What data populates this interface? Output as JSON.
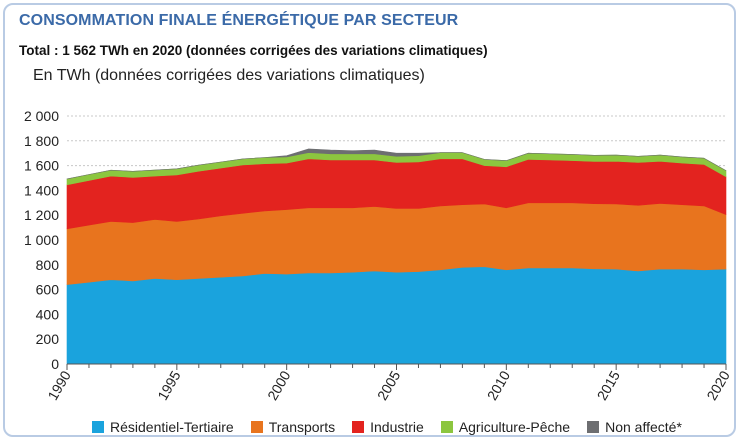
{
  "header": {
    "title": "CONSOMMATION FINALE ÉNERGÉTIQUE PAR SECTEUR",
    "subtitle": "Total : 1 562 TWh en 2020 (données corrigées des variations climatiques)",
    "unit_label": "En TWh (données corrigées des variations climatiques)"
  },
  "colors": {
    "title": "#3b6aa8",
    "grid": "#c8c8c8"
  },
  "chart_data": {
    "type": "area",
    "stacked": true,
    "ylabel": "En TWh (données corrigées des variations climatiques)",
    "ylim": [
      0,
      2000
    ],
    "xlim": [
      1990,
      2020
    ],
    "yticks": [
      0,
      200,
      400,
      600,
      800,
      1000,
      1200,
      1400,
      1600,
      1800,
      2000
    ],
    "ytick_labels": [
      "0",
      "200",
      "400",
      "600",
      "800",
      "1 000",
      "1 200",
      "1 400",
      "1 600",
      "1 800",
      "2 000"
    ],
    "xticks": [
      1990,
      1995,
      2000,
      2005,
      2010,
      2015,
      2020
    ],
    "xtick_labels": [
      "1990",
      "1995",
      "2000",
      "2005",
      "2010",
      "2015",
      "2020"
    ],
    "grid": true,
    "legend_position": "bottom",
    "x": [
      1990,
      1991,
      1992,
      1993,
      1994,
      1995,
      1996,
      1997,
      1998,
      1999,
      2000,
      2001,
      2002,
      2003,
      2004,
      2005,
      2006,
      2007,
      2008,
      2009,
      2010,
      2011,
      2012,
      2013,
      2014,
      2015,
      2016,
      2017,
      2018,
      2019,
      2020
    ],
    "series": [
      {
        "name": "Résidentiel-Tertiaire",
        "color": "#1aa3dd",
        "values": [
          640,
          660,
          680,
          670,
          690,
          680,
          690,
          700,
          710,
          730,
          725,
          735,
          735,
          740,
          750,
          740,
          745,
          760,
          780,
          785,
          760,
          775,
          775,
          775,
          768,
          765,
          750,
          765,
          765,
          760,
          765
        ]
      },
      {
        "name": "Transports",
        "color": "#e8741e",
        "values": [
          450,
          460,
          470,
          470,
          475,
          470,
          480,
          495,
          505,
          505,
          520,
          525,
          525,
          520,
          520,
          515,
          510,
          515,
          505,
          505,
          500,
          525,
          525,
          525,
          525,
          525,
          530,
          530,
          520,
          515,
          440
        ]
      },
      {
        "name": "Industrie",
        "color": "#e3231f",
        "values": [
          355,
          360,
          365,
          365,
          350,
          375,
          385,
          385,
          390,
          380,
          375,
          395,
          385,
          385,
          375,
          370,
          375,
          380,
          370,
          310,
          330,
          350,
          345,
          340,
          340,
          345,
          345,
          340,
          335,
          335,
          305
        ]
      },
      {
        "name": "Agriculture-Pêche",
        "color": "#8cc63f",
        "values": [
          48,
          48,
          48,
          49,
          49,
          49,
          49,
          49,
          49,
          50,
          50,
          50,
          50,
          50,
          50,
          50,
          50,
          50,
          50,
          50,
          50,
          50,
          50,
          50,
          50,
          50,
          50,
          50,
          50,
          50,
          50
        ]
      },
      {
        "name": "Non affecté*",
        "color": "#6d6e71",
        "values": [
          0,
          0,
          0,
          0,
          0,
          0,
          0,
          0,
          0,
          0,
          10,
          30,
          30,
          25,
          30,
          25,
          20,
          0,
          0,
          0,
          0,
          0,
          0,
          0,
          0,
          0,
          0,
          0,
          0,
          0,
          0
        ]
      }
    ]
  }
}
